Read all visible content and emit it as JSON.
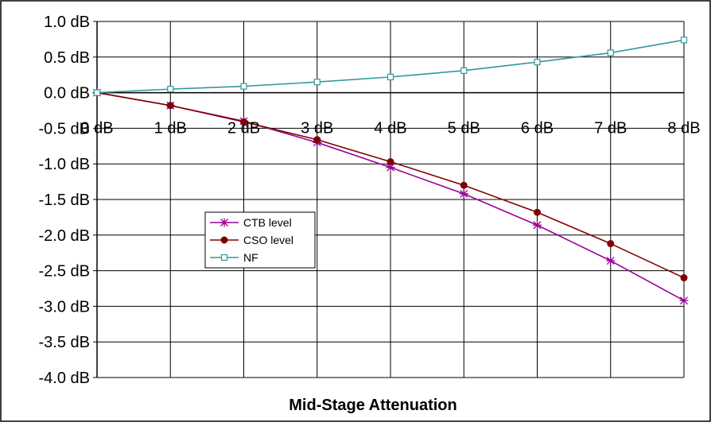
{
  "chart_data": {
    "type": "line",
    "title": "",
    "xlabel": "Mid-Stage Attenuation",
    "ylabel": "",
    "x": [
      0,
      1,
      2,
      3,
      4,
      5,
      6,
      7,
      8
    ],
    "x_tick_labels": [
      "0 dB",
      "1 dB",
      "2 dB",
      "3 dB",
      "4 dB",
      "5 dB",
      "6 dB",
      "7 dB",
      "8 dB"
    ],
    "y_ticks": [
      1.0,
      0.5,
      0.0,
      -0.5,
      -1.0,
      -1.5,
      -2.0,
      -2.5,
      -3.0,
      -3.5,
      -4.0
    ],
    "y_tick_labels": [
      "1.0 dB",
      "0.5 dB",
      "0.0 dB",
      "-0.5 dB",
      "-1.0 dB",
      "-1.5 dB",
      "-2.0 dB",
      "-2.5 dB",
      "-3.0 dB",
      "-3.5 dB",
      "-4.0 dB"
    ],
    "xlim": [
      0,
      8
    ],
    "ylim": [
      -4.0,
      1.0
    ],
    "grid": true,
    "legend_position": "center-left",
    "series": [
      {
        "name": "CTB level",
        "color": "#990099",
        "marker": "asterisk",
        "values": [
          0.0,
          -0.18,
          -0.4,
          -0.7,
          -1.05,
          -1.42,
          -1.86,
          -2.36,
          -2.92
        ]
      },
      {
        "name": "CSO level",
        "color": "#800000",
        "marker": "circle",
        "values": [
          0.0,
          -0.18,
          -0.41,
          -0.66,
          -0.97,
          -1.3,
          -1.68,
          -2.12,
          -2.6
        ]
      },
      {
        "name": "NF",
        "color": "#339999",
        "marker": "square",
        "values": [
          0.0,
          0.05,
          0.09,
          0.15,
          0.22,
          0.31,
          0.43,
          0.56,
          0.74
        ]
      }
    ]
  }
}
